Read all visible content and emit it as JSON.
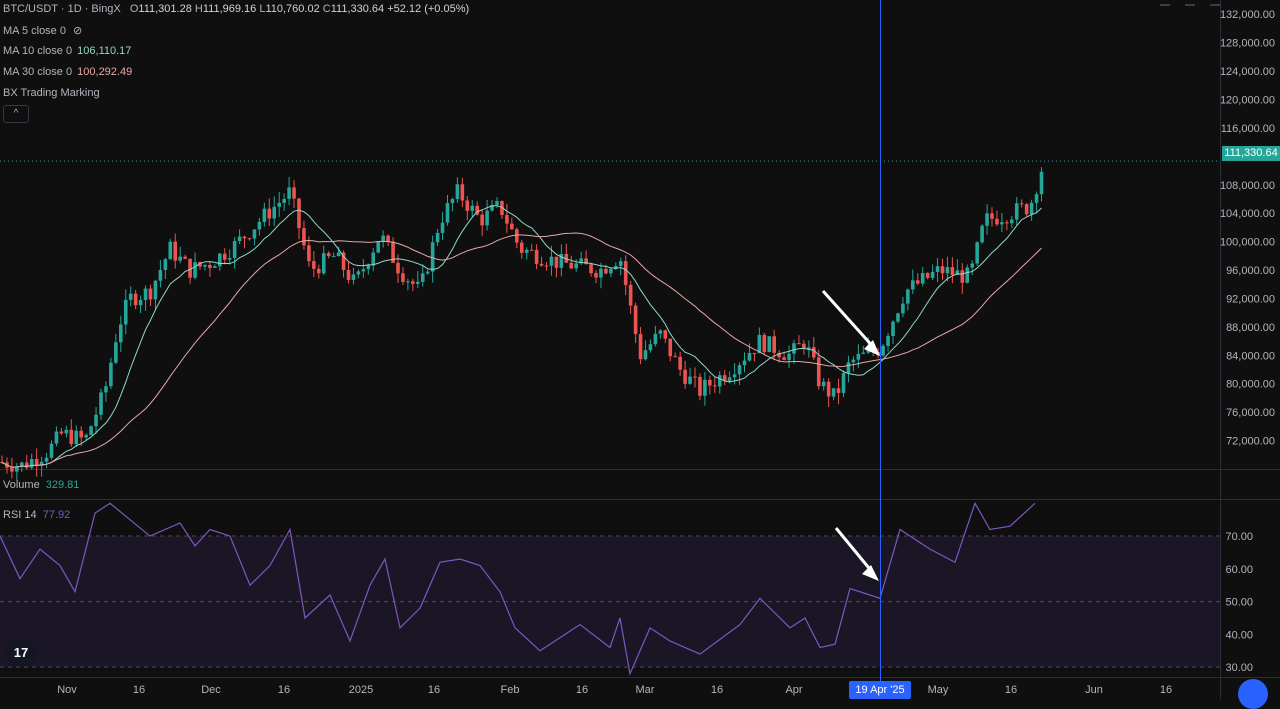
{
  "header": {
    "symbol": "BTC/USDT · 1D · BingX",
    "o_label": "O",
    "o": "111,301.28",
    "h_label": "H",
    "h": "111,969.16",
    "l_label": "L",
    "l": "110,760.02",
    "c_label": "C",
    "c": "111,330.64",
    "change": "+52.12 (+0.05%)"
  },
  "legend": {
    "ma5": "MA 5 close 0",
    "ma10": "MA 10 close 0",
    "ma10_value": "106,110.17",
    "ma30": "MA 30 close 0",
    "ma30_value": "100,292.49",
    "bx": "BX Trading Marking",
    "collapse": "^"
  },
  "volume": {
    "label": "Volume",
    "value": "329.81"
  },
  "rsi": {
    "label": "RSI 14",
    "value": "77.92"
  },
  "price_badge": "111,330.64",
  "date_badge": "19 Apr '25",
  "logo": "17",
  "colors": {
    "up": "#26a69a",
    "down": "#ef5350",
    "ma10": "#8fd9c9",
    "ma30": "#e8a7a5",
    "rsi": "#7e57c2",
    "crosshair": "#2962ff"
  },
  "chart_data": [
    {
      "type": "candlestick",
      "price_axis_ticks": [
        "132,000.00",
        "128,000.00",
        "124,000.00",
        "120,000.00",
        "116,000.00",
        "108,000.00",
        "104,000.00",
        "100,000.00",
        "96,000.00",
        "92,000.00",
        "88,000.00",
        "84,000.00",
        "80,000.00",
        "76,000.00",
        "72,000.00"
      ],
      "time_axis_ticks": [
        "Nov",
        "16",
        "Dec",
        "16",
        "2025",
        "16",
        "Feb",
        "16",
        "Mar",
        "16",
        "Apr",
        "16",
        "May",
        "16",
        "Jun",
        "16"
      ],
      "ylim": [
        68000,
        134000
      ],
      "last_price": 111330.64
    },
    {
      "type": "line",
      "name": "RSI 14",
      "axis_ticks": [
        "70.00",
        "60.00",
        "50.00",
        "40.00",
        "30.00"
      ],
      "ylim": [
        27,
        81
      ]
    }
  ]
}
